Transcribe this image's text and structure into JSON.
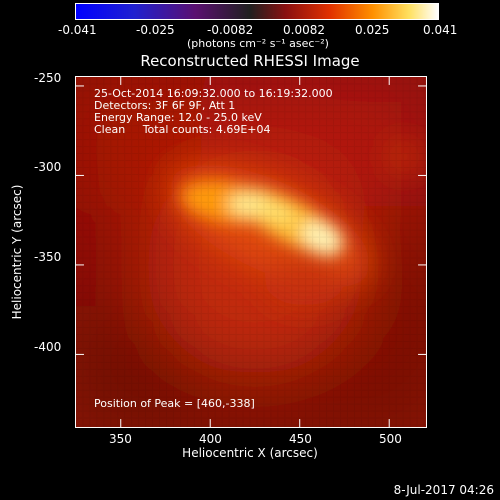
{
  "colorbar": {
    "ticks": [
      "-0.041",
      "-0.025",
      "-0.0082",
      "0.0082",
      "0.025",
      "0.041"
    ],
    "unit_label": "(photons cm⁻² s⁻¹ asec⁻²)",
    "min": -0.041,
    "max": 0.041
  },
  "chart_data": {
    "type": "heatmap",
    "title": "Reconstructed RHESSI Image",
    "xlabel": "Heliocentric X (arcsec)",
    "ylabel": "Heliocentric Y (arcsec)",
    "xlim": [
      325,
      520
    ],
    "ylim": [
      -440,
      -245
    ],
    "x_ticks": [
      "350",
      "400",
      "450",
      "500"
    ],
    "y_ticks": [
      "-250",
      "-300",
      "-350",
      "-400"
    ],
    "annotations": [
      "25-Oct-2014 16:09:32.000 to 16:19:32.000",
      "Detectors: 3F 6F 9F, Att 1",
      "Energy Range: 12.0 - 25.0 keV",
      "Clean     Total counts: 4.69E+04"
    ],
    "peak_label": "Position of Peak = [460,-338]",
    "peak": [
      460,
      -338
    ],
    "colormap": "hot"
  },
  "footer": {
    "timestamp": "8-Jul-2017 04:26"
  }
}
